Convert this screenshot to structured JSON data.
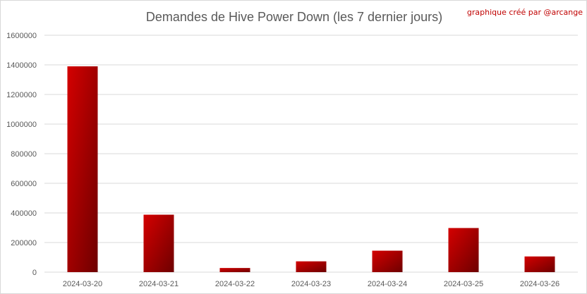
{
  "credit": "graphique créé par @arcange",
  "colors": {
    "bar_top": "#d40000",
    "bar_dark": "#6e0000",
    "grid": "#d9d9d9",
    "text": "#595959",
    "credit": "#c00000"
  },
  "chart_data": {
    "type": "bar",
    "title": "Demandes de Hive Power Down (les 7 dernier jours)",
    "xlabel": "",
    "ylabel": "",
    "categories": [
      "2024-03-20",
      "2024-03-21",
      "2024-03-22",
      "2024-03-23",
      "2024-03-24",
      "2024-03-25",
      "2024-03-26"
    ],
    "values": [
      1390000,
      388000,
      28000,
      73000,
      145000,
      298000,
      106000
    ],
    "ylim": [
      0,
      1600000
    ],
    "yticks": [
      0,
      200000,
      400000,
      600000,
      800000,
      1000000,
      1200000,
      1400000,
      1600000
    ],
    "grid": true,
    "legend": "none"
  }
}
